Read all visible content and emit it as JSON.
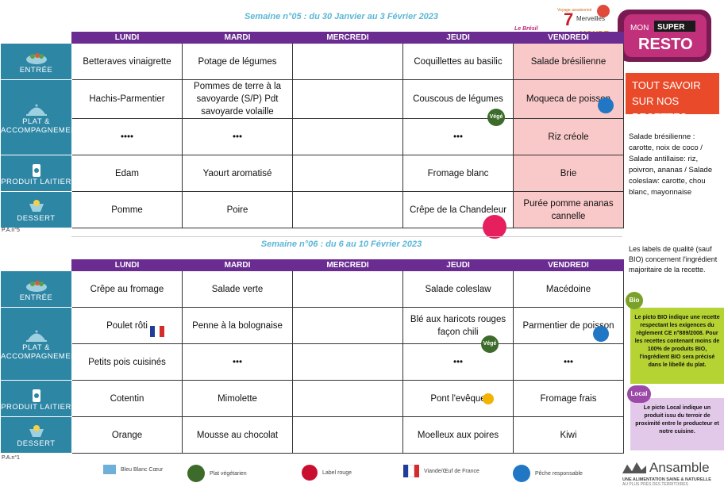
{
  "week1": {
    "title": "Semaine n°05 : du 30 Janvier au 3 Février 2023",
    "days": [
      "LUNDI",
      "MARDI",
      "MERCREDI",
      "JEUDI",
      "VENDREDI"
    ],
    "categories": [
      "ENTRÉE",
      "PLAT & ACCOMPAGNEMENT",
      "PRODUIT LAITIER",
      "DESSERT"
    ],
    "rows": [
      [
        "Betteraves vinaigrette",
        "Potage de légumes",
        "",
        "Coquillettes au basilic",
        "Salade brésilienne"
      ],
      [
        "Hachis-Parmentier",
        "Pommes de terre à la savoyarde (S/P) Pdt savoyarde volaille",
        "",
        "Couscous de légumes",
        "Moqueca de poisson"
      ],
      [
        "••••",
        "•••",
        "",
        "•••",
        "Riz créole"
      ],
      [
        "Edam",
        "Yaourt aromatisé",
        "",
        "Fromage blanc",
        "Brie"
      ],
      [
        "Pomme",
        "Poire",
        "",
        "Crêpe de la Chandeleur",
        "Purée pomme ananas cannelle"
      ]
    ],
    "footer": "P.A.n°5"
  },
  "week2": {
    "title": "Semaine n°06 : du 6 au 10 Février 2023",
    "days": [
      "LUNDI",
      "MARDI",
      "MERCREDI",
      "JEUDI",
      "VENDREDI"
    ],
    "rows": [
      [
        "Crêpe au fromage",
        "Salade verte",
        "",
        "Salade coleslaw",
        "Macédoine"
      ],
      [
        "Poulet rôti",
        "Penne à la bolognaise",
        "",
        "Blé aux haricots rouges façon chili",
        "Parmentier de poisson"
      ],
      [
        "Petits pois  cuisinés",
        "•••",
        "",
        "•••",
        "•••"
      ],
      [
        "Cotentin",
        "Mimolette",
        "",
        "Pont l'evêque",
        "Fromage frais"
      ],
      [
        "Orange",
        "Mousse au chocolat",
        "",
        "Moelleux aux poires",
        "Kiwi"
      ]
    ],
    "footer": "P.A.n°1"
  },
  "header": {
    "brasil_label": "Le Brésil",
    "merveilles": "Voyage assaisonné des 7 Merveilles du Monde",
    "resto_logo": "MON SUPER RESTO"
  },
  "sidebar": {
    "heading": "TOUT SAVOIR SUR NOS RECETTES",
    "recipes": "Salade brésilienne : carotte, noix de coco / Salade antillaise: riz, poivron, ananas / Salade coleslaw: carotte, chou blanc, mayonnaise",
    "labels_note": "Les labels de qualité (sauf BIO) concernent l'ingrédient majoritaire de la recette.",
    "bio_badge": "Bio",
    "bio_text": "Le picto BIO indique une recette respectant les exigences du règlement CE n°889/2008. Pour les recettes contenant moins de 100% de produits BIO, l'ingrédient BIO sera précisé dans le libellé du plat.",
    "local_badge": "Local",
    "local_text": "Le picto Local indique un produit issu du terroir de proximité entre le producteur et notre cuisine.",
    "bio_color": "#b6d334",
    "local_color": "#e2c9ea"
  },
  "badges": {
    "vege": "Végé"
  },
  "legend": [
    {
      "label": "Bleu Blanc Cœur",
      "icon": "bbc-icon"
    },
    {
      "label": "Plat végétarien",
      "icon": "vege-icon"
    },
    {
      "label": "Label rouge",
      "icon": "label-rouge-icon"
    },
    {
      "label": "Viande/Œuf de France",
      "icon": "french-flag-icon"
    },
    {
      "label": "Pêche responsable",
      "icon": "fish-icon"
    }
  ],
  "brand": {
    "name": "Ansamble",
    "tagline1": "UNE ALIMENTATION SAINE & NATURELLE",
    "tagline2": "AU PLUS PRÈS DES TERRITOIRES"
  },
  "colors": {
    "purple": "#6a2c91",
    "teal": "#2e86a5",
    "pink": "#f9c9c9",
    "orange": "#e94b2a"
  }
}
